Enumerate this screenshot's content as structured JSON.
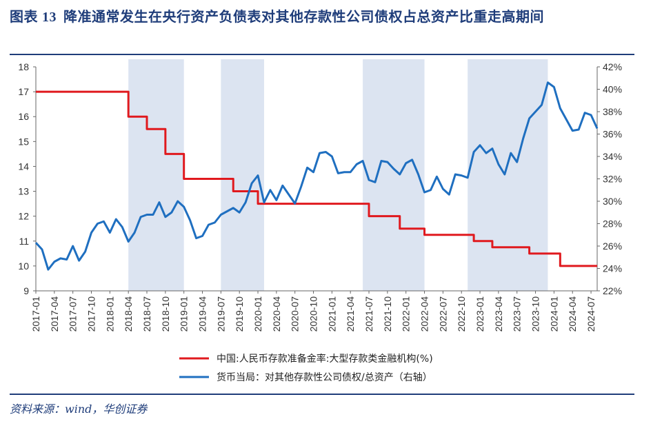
{
  "header": {
    "label": "图表",
    "number": "13",
    "text": "降准通常发生在央行资产负债表对其他存款性公司债权占总资产比重走高期间"
  },
  "source": "资料来源：wind，华创证券",
  "colors": {
    "red": "#e0191e",
    "blue": "#1f6fc0",
    "shade": "#dce4f1",
    "title": "#1f3d7a"
  },
  "chart_data": {
    "type": "line",
    "title": "图表 13 降准通常发生在央行资产负债表对其他存款性公司债权占总资产比重走高期间",
    "xlabel": "",
    "ylabel_left": "",
    "ylabel_right": "",
    "x_ticks": [
      "2017-01",
      "2017-04",
      "2017-07",
      "2017-10",
      "2018-01",
      "2018-04",
      "2018-07",
      "2018-10",
      "2019-01",
      "2019-04",
      "2019-07",
      "2019-10",
      "2020-01",
      "2020-04",
      "2020-07",
      "2020-10",
      "2021-01",
      "2021-04",
      "2021-07",
      "2021-10",
      "2022-01",
      "2022-04",
      "2022-07",
      "2022-10",
      "2023-01",
      "2023-04",
      "2023-07",
      "2023-10",
      "2024-01",
      "2024-04",
      "2024-07"
    ],
    "x_range": [
      "2017-01",
      "2024-08"
    ],
    "ylim_left": [
      9,
      18
    ],
    "yticks_left": [
      "9",
      "10",
      "11",
      "12",
      "13",
      "14",
      "15",
      "16",
      "17",
      "18"
    ],
    "ylim_right": [
      22,
      42
    ],
    "yticks_right": [
      "22%",
      "24%",
      "26%",
      "28%",
      "30%",
      "32%",
      "34%",
      "36%",
      "38%",
      "40%",
      "42%"
    ],
    "shaded_periods": [
      [
        "2018-04",
        "2019-01"
      ],
      [
        "2019-07",
        "2020-02"
      ],
      [
        "2021-06",
        "2022-04"
      ],
      [
        "2022-11",
        "2023-12"
      ]
    ],
    "series": [
      {
        "name": "中国:人民币存款准备金率:大型存款类金融机构(%)",
        "axis": "left",
        "color": "#e0191e",
        "step": true,
        "points": [
          [
            "2017-01",
            17
          ],
          [
            "2018-04",
            16
          ],
          [
            "2018-07",
            15.5
          ],
          [
            "2018-10",
            14.5
          ],
          [
            "2019-01",
            13.5
          ],
          [
            "2019-09",
            13
          ],
          [
            "2020-01",
            12.5
          ],
          [
            "2021-07",
            12
          ],
          [
            "2021-12",
            11.5
          ],
          [
            "2022-04",
            11.25
          ],
          [
            "2022-12",
            11
          ],
          [
            "2023-03",
            10.75
          ],
          [
            "2023-09",
            10.5
          ],
          [
            "2024-02",
            10
          ],
          [
            "2024-08",
            10
          ]
        ]
      },
      {
        "name": "货币当局：对其他存款性公司债权/总资产（右轴）",
        "axis": "right",
        "color": "#1f6fc0",
        "step": false,
        "points": [
          [
            "2017-01",
            26.3
          ],
          [
            "2017-02",
            25.7
          ],
          [
            "2017-03",
            23.9
          ],
          [
            "2017-04",
            24.6
          ],
          [
            "2017-05",
            24.9
          ],
          [
            "2017-06",
            24.8
          ],
          [
            "2017-07",
            26.0
          ],
          [
            "2017-08",
            24.7
          ],
          [
            "2017-09",
            25.5
          ],
          [
            "2017-10",
            27.2
          ],
          [
            "2017-11",
            28.0
          ],
          [
            "2017-12",
            28.2
          ],
          [
            "2018-01",
            27.2
          ],
          [
            "2018-02",
            28.4
          ],
          [
            "2018-03",
            27.7
          ],
          [
            "2018-04",
            26.4
          ],
          [
            "2018-05",
            27.2
          ],
          [
            "2018-06",
            28.6
          ],
          [
            "2018-07",
            28.8
          ],
          [
            "2018-08",
            28.8
          ],
          [
            "2018-09",
            29.9
          ],
          [
            "2018-10",
            28.6
          ],
          [
            "2018-11",
            29.0
          ],
          [
            "2018-12",
            30.0
          ],
          [
            "2019-01",
            29.5
          ],
          [
            "2019-02",
            28.3
          ],
          [
            "2019-03",
            26.7
          ],
          [
            "2019-04",
            26.9
          ],
          [
            "2019-05",
            27.9
          ],
          [
            "2019-06",
            28.1
          ],
          [
            "2019-07",
            28.8
          ],
          [
            "2019-08",
            29.1
          ],
          [
            "2019-09",
            29.4
          ],
          [
            "2019-10",
            29.0
          ],
          [
            "2019-11",
            29.9
          ],
          [
            "2019-12",
            31.6
          ],
          [
            "2020-01",
            32.3
          ],
          [
            "2020-02",
            29.9
          ],
          [
            "2020-03",
            31.0
          ],
          [
            "2020-04",
            30.1
          ],
          [
            "2020-05",
            31.4
          ],
          [
            "2020-06",
            30.6
          ],
          [
            "2020-07",
            29.8
          ],
          [
            "2020-08",
            31.3
          ],
          [
            "2020-09",
            33.0
          ],
          [
            "2020-10",
            32.6
          ],
          [
            "2020-11",
            34.3
          ],
          [
            "2020-12",
            34.4
          ],
          [
            "2021-01",
            34.0
          ],
          [
            "2021-02",
            32.5
          ],
          [
            "2021-03",
            32.6
          ],
          [
            "2021-04",
            32.6
          ],
          [
            "2021-05",
            33.3
          ],
          [
            "2021-06",
            33.6
          ],
          [
            "2021-07",
            31.9
          ],
          [
            "2021-08",
            31.7
          ],
          [
            "2021-09",
            33.6
          ],
          [
            "2021-10",
            33.5
          ],
          [
            "2021-11",
            32.9
          ],
          [
            "2021-12",
            32.4
          ],
          [
            "2022-01",
            33.4
          ],
          [
            "2022-02",
            33.7
          ],
          [
            "2022-03",
            32.4
          ],
          [
            "2022-04",
            30.8
          ],
          [
            "2022-05",
            31.0
          ],
          [
            "2022-06",
            32.2
          ],
          [
            "2022-07",
            31.1
          ],
          [
            "2022-08",
            30.6
          ],
          [
            "2022-09",
            32.4
          ],
          [
            "2022-10",
            32.3
          ],
          [
            "2022-11",
            32.1
          ],
          [
            "2022-12",
            34.4
          ],
          [
            "2023-01",
            35.0
          ],
          [
            "2023-02",
            34.3
          ],
          [
            "2023-03",
            34.7
          ],
          [
            "2023-04",
            33.3
          ],
          [
            "2023-05",
            32.4
          ],
          [
            "2023-06",
            34.3
          ],
          [
            "2023-07",
            33.5
          ],
          [
            "2023-08",
            35.6
          ],
          [
            "2023-09",
            37.4
          ],
          [
            "2023-10",
            38.0
          ],
          [
            "2023-11",
            38.6
          ],
          [
            "2023-12",
            40.6
          ],
          [
            "2024-01",
            40.2
          ],
          [
            "2024-02",
            38.3
          ],
          [
            "2024-03",
            37.3
          ],
          [
            "2024-04",
            36.3
          ],
          [
            "2024-05",
            36.4
          ],
          [
            "2024-06",
            37.9
          ],
          [
            "2024-07",
            37.7
          ],
          [
            "2024-08",
            36.5
          ]
        ]
      }
    ],
    "legend_placement": "bottom-center",
    "grid": false
  }
}
